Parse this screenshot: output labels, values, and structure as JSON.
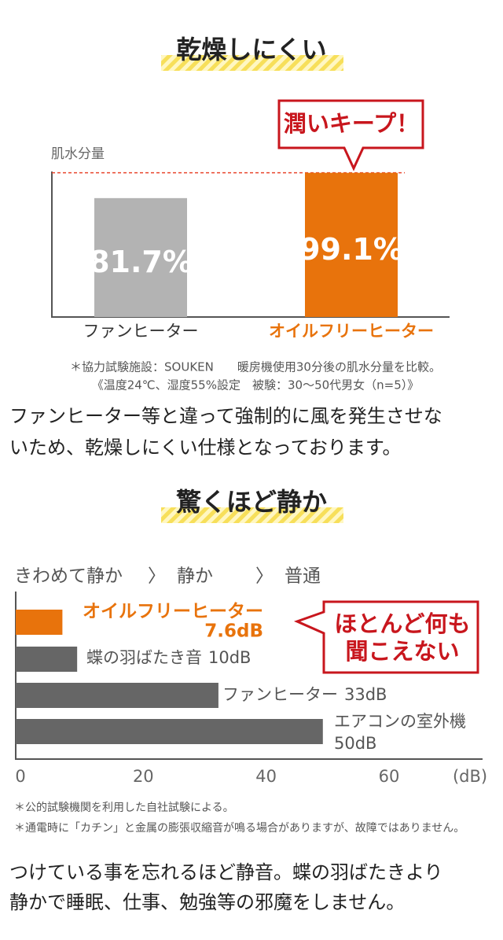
{
  "chart_data": [
    {
      "type": "bar",
      "title": "乾燥しにくい",
      "y_label": "肌水分量",
      "categories": [
        "ファンヒーター",
        "オイルフリーヒーター"
      ],
      "values": [
        81.7,
        99.1
      ],
      "value_labels": [
        "81.7%",
        "99.1%"
      ],
      "colors": [
        "#b3b3b3",
        "#e8730c"
      ],
      "ylim": [
        0,
        100
      ],
      "annotation": "潤いキープ！",
      "notes": [
        "＊協力試験施設：SOUKEN　　暖房機使用30分後の肌水分量を比較。",
        "《温度24℃、湿度55%設定　被験：30〜50代男女（n=5）》"
      ]
    },
    {
      "type": "hbar",
      "title": "驚くほど静か",
      "scale_labels": [
        "きわめて静か",
        "静か",
        "普通"
      ],
      "categories": [
        "オイルフリーヒーター",
        "蝶の羽ばたき音",
        "ファンヒーター",
        "エアコンの室外機"
      ],
      "values": [
        7.6,
        10,
        33,
        50
      ],
      "value_labels": [
        "7.6dB",
        "10dB",
        "33dB",
        "50dB"
      ],
      "colors": [
        "#e8730c",
        "#666666",
        "#666666",
        "#666666"
      ],
      "xlim": [
        0,
        76
      ],
      "xticks": [
        0,
        20,
        40,
        60
      ],
      "x_unit": "(dB)",
      "annotation": [
        "ほとんど何も",
        "聞こえない"
      ],
      "notes": [
        "＊公的試験機関を利用した自社試験による。",
        "＊通電時に「カチン」と金属の膨張収縮音が鳴る場合がありますが、故障ではありません。"
      ]
    }
  ],
  "paragraphs": [
    [
      "ファンヒーター等と違って強制的に風を発生させな",
      "いため、乾燥しにくい仕様となっております。"
    ],
    [
      "つけている事を忘れるほど静音。蝶の羽ばたきより",
      "静かで睡眠、仕事、勉強等の邪魔をしません。"
    ]
  ]
}
